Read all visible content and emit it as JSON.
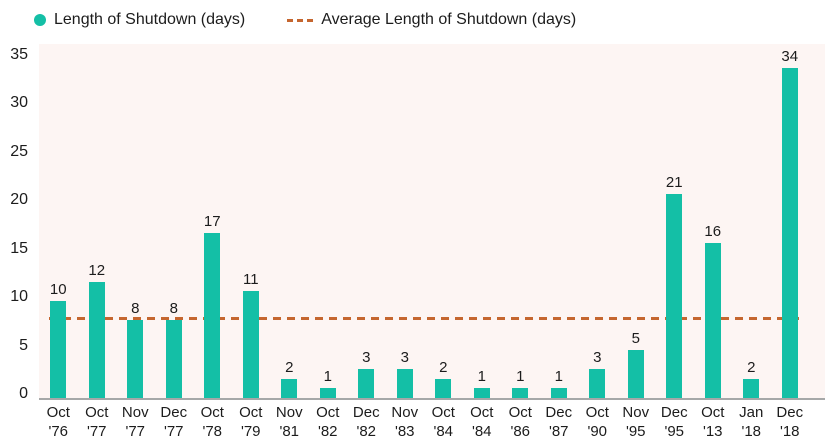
{
  "legend": {
    "series_label": "Length of Shutdown (days)",
    "average_label": "Average Length of Shutdown (days)"
  },
  "colors": {
    "bar": "#14bfa6",
    "average_line": "#c5662f",
    "plot_background": "#fdf5f3",
    "axis_line": "#a6a8a8",
    "text": "#1c1c1c"
  },
  "chart_data": {
    "type": "bar",
    "title": "",
    "xlabel": "",
    "ylabel": "",
    "categories": [
      {
        "month": "Oct",
        "year": "'76"
      },
      {
        "month": "Oct",
        "year": "'77"
      },
      {
        "month": "Nov",
        "year": "'77"
      },
      {
        "month": "Dec",
        "year": "'77"
      },
      {
        "month": "Oct",
        "year": "'78"
      },
      {
        "month": "Oct",
        "year": "'79"
      },
      {
        "month": "Nov",
        "year": "'81"
      },
      {
        "month": "Oct",
        "year": "'82"
      },
      {
        "month": "Dec",
        "year": "'82"
      },
      {
        "month": "Nov",
        "year": "'83"
      },
      {
        "month": "Oct",
        "year": "'84"
      },
      {
        "month": "Oct",
        "year": "'84"
      },
      {
        "month": "Oct",
        "year": "'86"
      },
      {
        "month": "Dec",
        "year": "'87"
      },
      {
        "month": "Oct",
        "year": "'90"
      },
      {
        "month": "Nov",
        "year": "'95"
      },
      {
        "month": "Dec",
        "year": "'95"
      },
      {
        "month": "Oct",
        "year": "'13"
      },
      {
        "month": "Jan",
        "year": "'18"
      },
      {
        "month": "Dec",
        "year": "'18"
      }
    ],
    "series": [
      {
        "name": "Length of Shutdown (days)",
        "values": [
          10,
          12,
          8,
          8,
          17,
          11,
          2,
          1,
          3,
          3,
          2,
          1,
          1,
          1,
          3,
          5,
          21,
          16,
          2,
          34
        ]
      }
    ],
    "average_line": {
      "name": "Average Length of Shutdown (days)",
      "value": 8.05,
      "style": "dashed"
    },
    "y_ticks": [
      0,
      5,
      10,
      15,
      20,
      25,
      30,
      35
    ],
    "ylim": [
      0,
      36.5
    ],
    "grid": false,
    "legend_position": "top-left",
    "data_labels": true
  }
}
